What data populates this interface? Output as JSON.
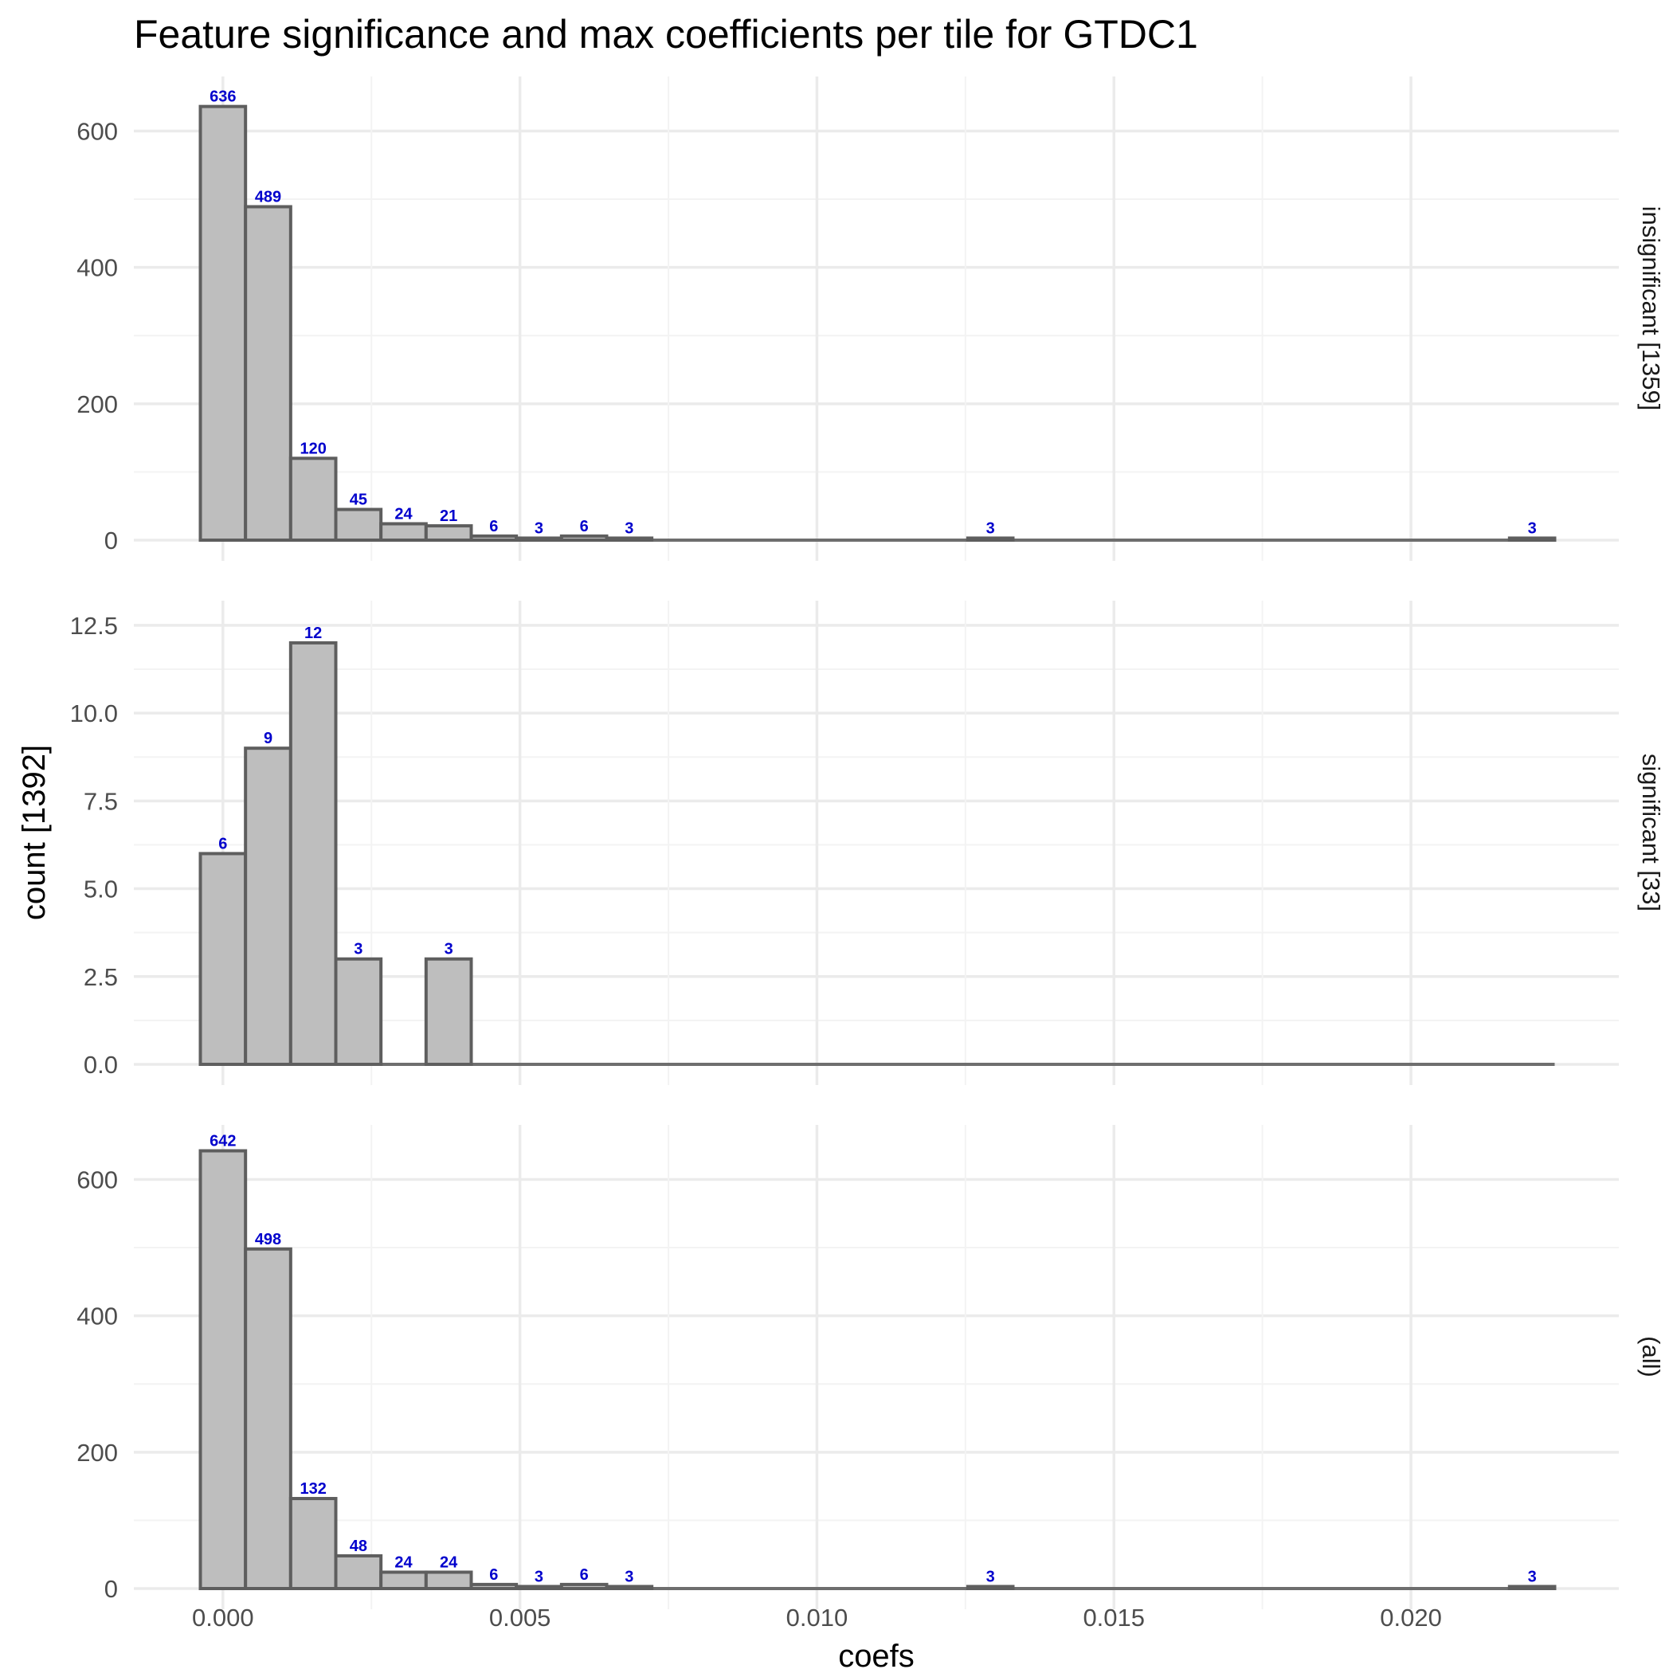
{
  "chart_data": {
    "type": "bar",
    "title": "Feature significance and max coefficients per tile for GTDC1",
    "xlabel": "coefs",
    "ylabel": "count [1392]",
    "x_ticks": [
      "0.000",
      "0.005",
      "0.010",
      "0.015",
      "0.020"
    ],
    "x_tick_values": [
      0,
      0.005,
      0.01,
      0.015,
      0.02
    ],
    "xlim": [
      -0.0015,
      0.0235
    ],
    "bin_width": 0.00076,
    "bin_start": -0.00038,
    "grid": true,
    "panels": [
      {
        "strip": "insignificant [1359]",
        "ylim": [
          0,
          680
        ],
        "y_ticks": [
          "0",
          "200",
          "400",
          "600"
        ],
        "y_tick_values": [
          0,
          200,
          400,
          600
        ],
        "bins": [
          {
            "bin": 0,
            "count": 636,
            "label": "636"
          },
          {
            "bin": 1,
            "count": 489,
            "label": "489"
          },
          {
            "bin": 2,
            "count": 120,
            "label": "120"
          },
          {
            "bin": 3,
            "count": 45,
            "label": "45"
          },
          {
            "bin": 4,
            "count": 24,
            "label": "24"
          },
          {
            "bin": 5,
            "count": 21,
            "label": "21"
          },
          {
            "bin": 6,
            "count": 6,
            "label": "6"
          },
          {
            "bin": 7,
            "count": 3,
            "label": "3"
          },
          {
            "bin": 8,
            "count": 6,
            "label": "6"
          },
          {
            "bin": 9,
            "count": 3,
            "label": "3"
          },
          {
            "bin": 17,
            "count": 3,
            "label": "3"
          },
          {
            "bin": 29,
            "count": 3,
            "label": "3"
          }
        ]
      },
      {
        "strip": "significant [33]",
        "ylim": [
          0,
          13.2
        ],
        "y_ticks": [
          "0.0",
          "2.5",
          "5.0",
          "7.5",
          "10.0",
          "12.5"
        ],
        "y_tick_values": [
          0,
          2.5,
          5,
          7.5,
          10,
          12.5
        ],
        "bins": [
          {
            "bin": 0,
            "count": 6,
            "label": "6"
          },
          {
            "bin": 1,
            "count": 9,
            "label": "9"
          },
          {
            "bin": 2,
            "count": 12,
            "label": "12"
          },
          {
            "bin": 3,
            "count": 3,
            "label": "3"
          },
          {
            "bin": 5,
            "count": 3,
            "label": "3"
          }
        ]
      },
      {
        "strip": "(all)",
        "ylim": [
          0,
          680
        ],
        "y_ticks": [
          "0",
          "200",
          "400",
          "600"
        ],
        "y_tick_values": [
          0,
          200,
          400,
          600
        ],
        "bins": [
          {
            "bin": 0,
            "count": 642,
            "label": "642"
          },
          {
            "bin": 1,
            "count": 498,
            "label": "498"
          },
          {
            "bin": 2,
            "count": 132,
            "label": "132"
          },
          {
            "bin": 3,
            "count": 48,
            "label": "48"
          },
          {
            "bin": 4,
            "count": 24,
            "label": "24"
          },
          {
            "bin": 5,
            "count": 24,
            "label": "24"
          },
          {
            "bin": 6,
            "count": 6,
            "label": "6"
          },
          {
            "bin": 7,
            "count": 3,
            "label": "3"
          },
          {
            "bin": 8,
            "count": 6,
            "label": "6"
          },
          {
            "bin": 9,
            "count": 3,
            "label": "3"
          },
          {
            "bin": 17,
            "count": 3,
            "label": "3"
          },
          {
            "bin": 29,
            "count": 3,
            "label": "3"
          }
        ]
      }
    ],
    "colors": {
      "bar_fill": "#bebebe",
      "bar_outline": "#5e5e5e",
      "data_label": "#0000cc"
    }
  }
}
